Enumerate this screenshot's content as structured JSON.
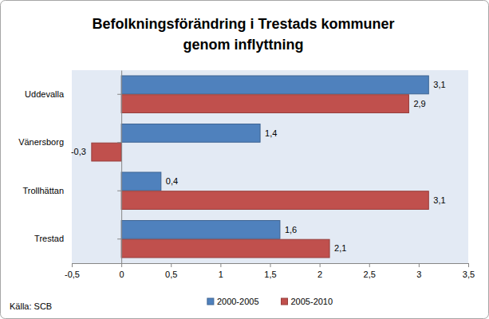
{
  "chart_data": {
    "type": "bar",
    "orientation": "horizontal",
    "title": "Befolkningsförändring i Trestads kommuner genom inflyttning",
    "annotations": [
      "Källa: SCB"
    ],
    "categories": [
      "Uddevalla",
      "Vänersborg",
      "Trollhättan",
      "Trestad"
    ],
    "series": [
      {
        "name": "2000-2005",
        "color": "#4f81bd",
        "values": [
          3.1,
          1.4,
          0.4,
          1.6
        ],
        "value_labels": [
          "3,1",
          "1,4",
          "0,4",
          "1,6"
        ]
      },
      {
        "name": "2005-2010",
        "color": "#c0504d",
        "values": [
          2.9,
          -0.3,
          3.1,
          2.1
        ],
        "value_labels": [
          "2,9",
          "-0,3",
          "3,1",
          "2,1"
        ]
      }
    ],
    "xlim": [
      -0.5,
      3.5
    ],
    "xticks": [
      {
        "value": -0.5,
        "label": "-0,5"
      },
      0,
      {
        "value": 0.5,
        "label": "0,5"
      },
      1,
      {
        "value": 1.5,
        "label": "1,5"
      },
      2,
      {
        "value": 2.5,
        "label": "2,5"
      },
      3,
      {
        "value": 3.5,
        "label": "3,5"
      }
    ],
    "grid": false,
    "legend": "bottom",
    "data_labels": true
  }
}
